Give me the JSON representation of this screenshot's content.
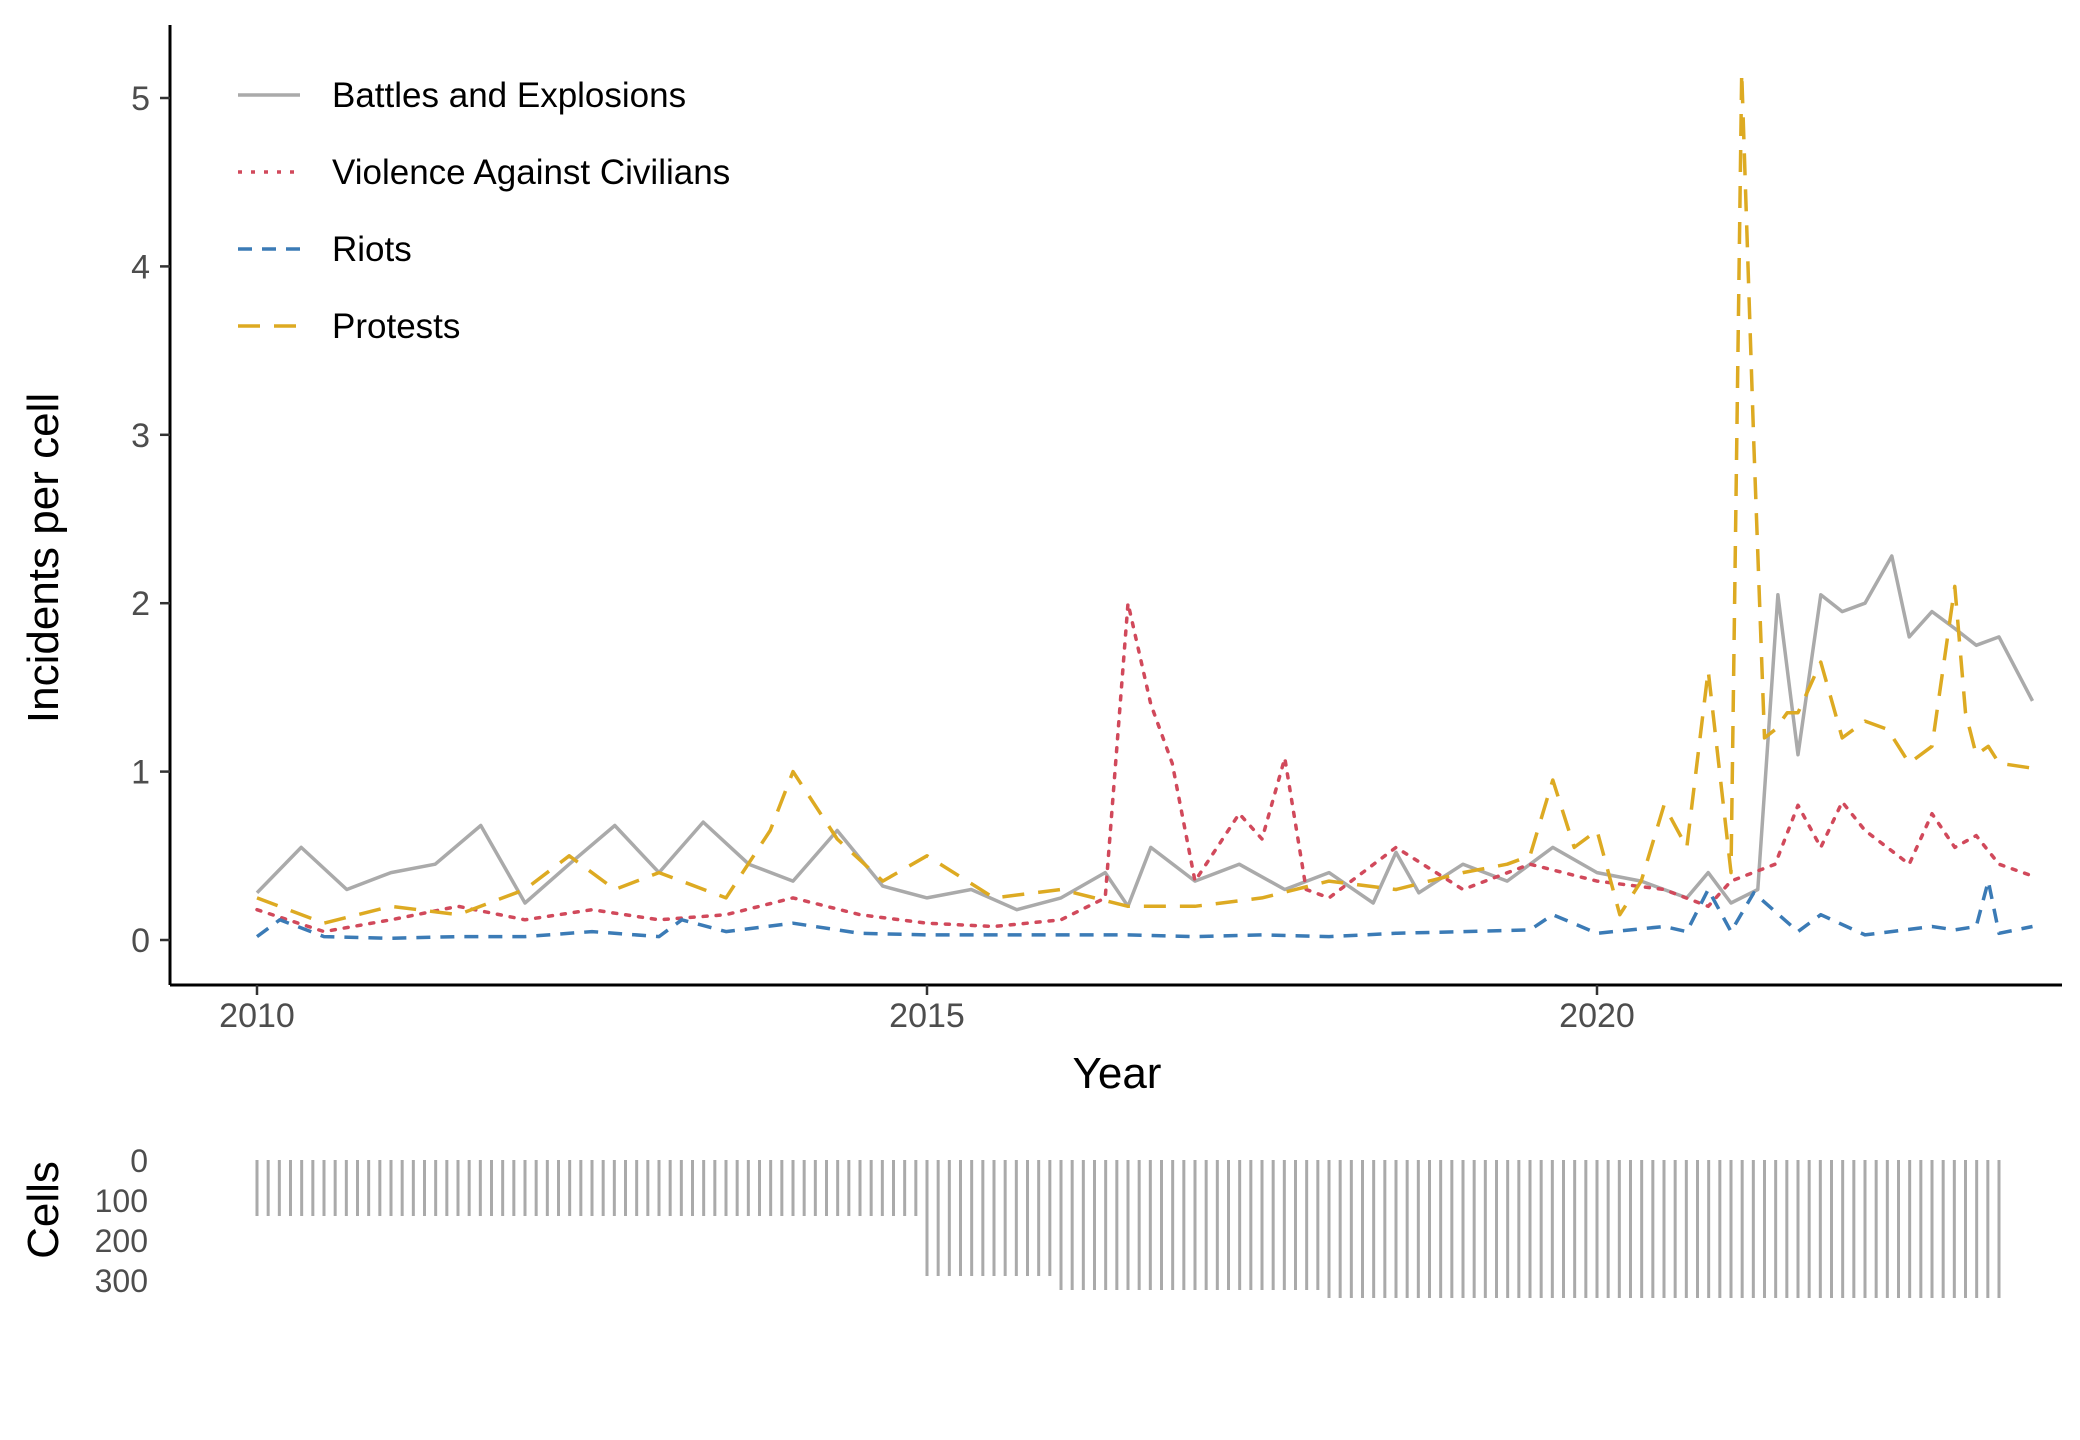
{
  "chart_data": [
    {
      "type": "line",
      "xlabel": "Year",
      "ylabel": "Incidents per cell",
      "xlim": [
        2009.35,
        2023.55
      ],
      "ylim": [
        -0.25,
        5.45
      ],
      "x_ticks": [
        2010,
        2015,
        2020
      ],
      "y_ticks": [
        0,
        1,
        2,
        3,
        4,
        5
      ],
      "grid": false,
      "legend_position": "top-left",
      "series": [
        {
          "name": "Battles and Explosions",
          "color": "#aaaaaa",
          "dash": "solid",
          "x": [
            2010.0,
            2010.33,
            2010.67,
            2011.0,
            2011.33,
            2011.67,
            2012.0,
            2012.33,
            2012.67,
            2013.0,
            2013.33,
            2013.67,
            2014.0,
            2014.33,
            2014.67,
            2015.0,
            2015.33,
            2015.67,
            2016.0,
            2016.33,
            2016.5,
            2016.67,
            2017.0,
            2017.33,
            2017.67,
            2018.0,
            2018.33,
            2018.5,
            2018.67,
            2019.0,
            2019.33,
            2019.67,
            2020.0,
            2020.33,
            2020.67,
            2020.83,
            2021.0,
            2021.2,
            2021.35,
            2021.5,
            2021.67,
            2021.83,
            2022.0,
            2022.2,
            2022.33,
            2022.5,
            2022.67,
            2022.83,
            2023.0,
            2023.25
          ],
          "values": [
            0.28,
            0.55,
            0.3,
            0.4,
            0.45,
            0.68,
            0.22,
            0.45,
            0.68,
            0.4,
            0.7,
            0.45,
            0.35,
            0.65,
            0.32,
            0.25,
            0.3,
            0.18,
            0.25,
            0.4,
            0.2,
            0.55,
            0.35,
            0.45,
            0.3,
            0.4,
            0.22,
            0.52,
            0.28,
            0.45,
            0.35,
            0.55,
            0.4,
            0.35,
            0.25,
            0.4,
            0.22,
            0.3,
            2.05,
            1.1,
            2.05,
            1.95,
            2.0,
            2.28,
            1.8,
            1.95,
            1.85,
            1.75,
            1.8,
            1.42
          ]
        },
        {
          "name": "Violence Against Civilians",
          "color": "#d1495b",
          "dash": "dotted",
          "x": [
            2010.0,
            2010.5,
            2011.0,
            2011.5,
            2012.0,
            2012.5,
            2013.0,
            2013.5,
            2014.0,
            2014.5,
            2015.0,
            2015.5,
            2016.0,
            2016.33,
            2016.5,
            2016.67,
            2016.83,
            2017.0,
            2017.33,
            2017.5,
            2017.67,
            2017.83,
            2018.0,
            2018.5,
            2019.0,
            2019.5,
            2020.0,
            2020.5,
            2020.83,
            2021.0,
            2021.33,
            2021.5,
            2021.67,
            2021.83,
            2022.0,
            2022.33,
            2022.5,
            2022.67,
            2022.83,
            2023.0,
            2023.25
          ],
          "values": [
            0.18,
            0.05,
            0.12,
            0.2,
            0.12,
            0.18,
            0.12,
            0.15,
            0.25,
            0.15,
            0.1,
            0.08,
            0.12,
            0.25,
            2.0,
            1.4,
            1.05,
            0.35,
            0.75,
            0.6,
            1.08,
            0.3,
            0.25,
            0.55,
            0.3,
            0.45,
            0.35,
            0.3,
            0.2,
            0.35,
            0.45,
            0.8,
            0.55,
            0.82,
            0.65,
            0.45,
            0.75,
            0.55,
            0.62,
            0.45,
            0.38
          ]
        },
        {
          "name": "Riots",
          "color": "#3b7bb6",
          "dash": "dashed-short",
          "x": [
            2010.0,
            2010.17,
            2010.5,
            2011.0,
            2011.5,
            2012.0,
            2012.5,
            2013.0,
            2013.17,
            2013.5,
            2014.0,
            2014.5,
            2015.0,
            2015.5,
            2016.0,
            2016.5,
            2017.0,
            2017.5,
            2018.0,
            2018.5,
            2019.0,
            2019.5,
            2019.67,
            2020.0,
            2020.5,
            2020.67,
            2020.83,
            2021.0,
            2021.17,
            2021.5,
            2021.67,
            2022.0,
            2022.5,
            2022.67,
            2022.83,
            2022.92,
            2023.0,
            2023.25
          ],
          "values": [
            0.02,
            0.12,
            0.02,
            0.01,
            0.02,
            0.02,
            0.05,
            0.02,
            0.12,
            0.05,
            0.1,
            0.04,
            0.03,
            0.03,
            0.03,
            0.03,
            0.02,
            0.03,
            0.02,
            0.04,
            0.05,
            0.06,
            0.15,
            0.04,
            0.08,
            0.05,
            0.3,
            0.05,
            0.28,
            0.05,
            0.15,
            0.03,
            0.08,
            0.06,
            0.08,
            0.35,
            0.04,
            0.08
          ]
        },
        {
          "name": "Protests",
          "color": "#ddaa22",
          "dash": "dashed-long",
          "x": [
            2010.0,
            2010.5,
            2011.0,
            2011.5,
            2012.0,
            2012.33,
            2012.67,
            2013.0,
            2013.5,
            2013.83,
            2014.0,
            2014.33,
            2014.67,
            2015.0,
            2015.5,
            2016.0,
            2016.5,
            2017.0,
            2017.5,
            2018.0,
            2018.5,
            2019.0,
            2019.33,
            2019.5,
            2019.67,
            2019.83,
            2020.0,
            2020.17,
            2020.33,
            2020.5,
            2020.67,
            2020.83,
            2021.0,
            2021.08,
            2021.17,
            2021.25,
            2021.33,
            2021.42,
            2021.5,
            2021.67,
            2021.83,
            2022.0,
            2022.17,
            2022.33,
            2022.5,
            2022.67,
            2022.75,
            2022.83,
            2022.92,
            2023.0,
            2023.25
          ],
          "values": [
            0.25,
            0.1,
            0.2,
            0.15,
            0.3,
            0.5,
            0.3,
            0.4,
            0.25,
            0.65,
            1.0,
            0.6,
            0.35,
            0.5,
            0.25,
            0.3,
            0.2,
            0.2,
            0.25,
            0.35,
            0.3,
            0.4,
            0.45,
            0.5,
            0.95,
            0.55,
            0.65,
            0.15,
            0.35,
            0.8,
            0.55,
            1.6,
            0.4,
            5.15,
            2.95,
            1.2,
            1.25,
            1.35,
            1.35,
            1.65,
            1.2,
            1.3,
            1.25,
            1.05,
            1.15,
            2.1,
            1.35,
            1.1,
            1.15,
            1.05,
            1.02
          ]
        }
      ]
    },
    {
      "type": "bar",
      "ylabel": "Cells",
      "y_ticks": [
        0,
        100,
        200,
        300
      ],
      "ylim": [
        0,
        350
      ],
      "orientation": "downward",
      "color": "#aaaaaa",
      "segments": [
        {
          "from": 2010.0,
          "to": 2015.0,
          "value": 140
        },
        {
          "from": 2015.0,
          "to": 2016.0,
          "value": 290
        },
        {
          "from": 2016.0,
          "to": 2018.0,
          "value": 325
        },
        {
          "from": 2018.0,
          "to": 2023.0,
          "value": 345
        }
      ]
    }
  ]
}
